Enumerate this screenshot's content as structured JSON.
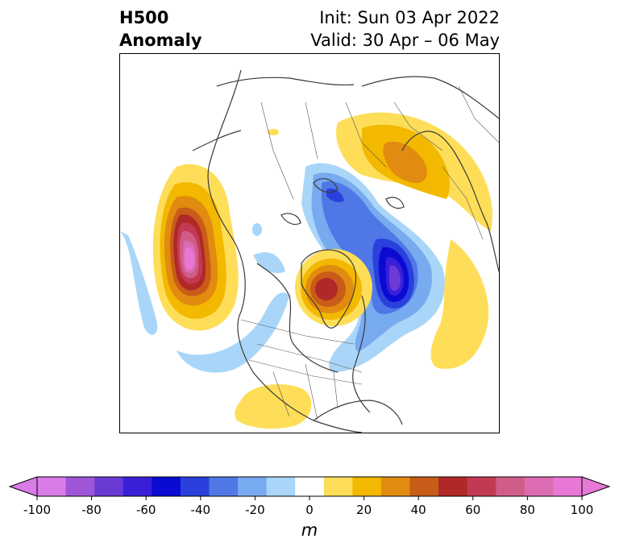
{
  "title": {
    "left_line1": "H500",
    "left_line2": "Anomaly",
    "right_line1": "Init: Sun 03 Apr 2022",
    "right_line2": "Valid: 30 Apr – 06 May"
  },
  "colorbar": {
    "unit": "m",
    "ticks": [
      "-100",
      "-80",
      "-60",
      "-40",
      "-20",
      "0",
      "20",
      "40",
      "60",
      "80",
      "100"
    ],
    "levels": [
      -100,
      -90,
      -80,
      -70,
      -60,
      -50,
      -40,
      -30,
      -20,
      -10,
      10,
      20,
      30,
      40,
      50,
      60,
      70,
      80,
      90,
      100
    ],
    "colors": [
      "#d97ce8",
      "#9e55d8",
      "#6a3bd4",
      "#3a1fd8",
      "#0a0ad2",
      "#2a40dc",
      "#4f78e6",
      "#78aaf0",
      "#a9d6f8",
      "#ffffff",
      "#fede58",
      "#f3b800",
      "#e18b10",
      "#c85c18",
      "#b02828",
      "#c23a52",
      "#d05c88",
      "#dc6cb2",
      "#e878d6"
    ],
    "extend_low_color": "#d97ce8",
    "extend_high_color": "#e878d6"
  },
  "map": {
    "projection": "north polar stereographic",
    "anomaly_centers": [
      {
        "region": "northeast Pacific",
        "value": 100
      },
      {
        "region": "Greenland / Baffin Bay",
        "value": 60
      },
      {
        "region": "north Atlantic",
        "value": -80
      },
      {
        "region": "Scandinavia / Barents",
        "value": -50
      },
      {
        "region": "western Russia",
        "value": 40
      },
      {
        "region": "Gulf of Mexico",
        "value": 10
      }
    ]
  }
}
